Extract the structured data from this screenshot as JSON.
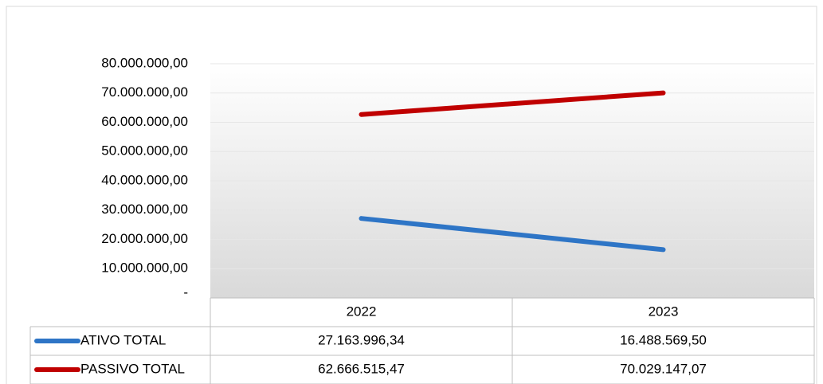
{
  "chart_data": {
    "type": "line",
    "categories": [
      "2022",
      "2023"
    ],
    "series": [
      {
        "name": "ATIVO TOTAL",
        "color": "#2e75c6",
        "values": [
          27163996.34,
          16488569.5
        ],
        "value_labels": [
          "27.163.996,34",
          "16.488.569,50"
        ]
      },
      {
        "name": "PASSIVO TOTAL",
        "color": "#c00000",
        "values": [
          62666515.47,
          70029147.07
        ],
        "value_labels": [
          "62.666.515,47",
          "70.029.147,07"
        ]
      }
    ],
    "ylim": [
      0,
      80000000
    ],
    "yticks": [
      {
        "value": 0,
        "label": "-"
      },
      {
        "value": 10000000,
        "label": "10.000.000,00"
      },
      {
        "value": 20000000,
        "label": "20.000.000,00"
      },
      {
        "value": 30000000,
        "label": "30.000.000,00"
      },
      {
        "value": 40000000,
        "label": "40.000.000,00"
      },
      {
        "value": 50000000,
        "label": "50.000.000,00"
      },
      {
        "value": 60000000,
        "label": "60.000.000,00"
      },
      {
        "value": 70000000,
        "label": "70.000.000,00"
      },
      {
        "value": 80000000,
        "label": "80.000.000,00"
      }
    ],
    "grid": true,
    "data_table": true
  }
}
